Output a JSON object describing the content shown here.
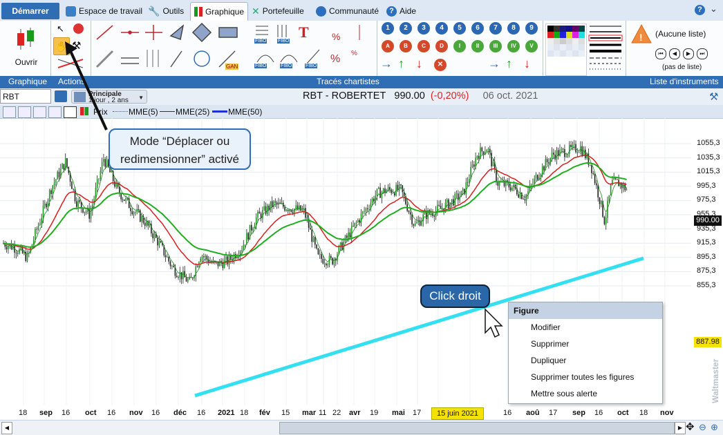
{
  "tabs": {
    "start": "Démarrer",
    "workspace": "Espace de travail",
    "tools": "Outils",
    "chart": "Graphique",
    "portfolio": "Portefeuille",
    "community": "Communauté",
    "help": "Aide"
  },
  "ribbon": {
    "open_label": "Ouvrir",
    "no_list": "(Aucune liste)",
    "no_step": "(pas de liste)",
    "fibo": "FIBO",
    "gann": "GAN"
  },
  "groups": {
    "chart": "Graphique",
    "actions": "Actions",
    "tracings": "Tracés chartistes",
    "instruments": "Liste d'instruments"
  },
  "toolbar": {
    "symbol": "RBT",
    "period_main": "Principale",
    "period_sub": "1 jour , 2 ans",
    "title_name": "RBT - ROBERTET",
    "title_price": "990.00",
    "title_change": "(-0,20%)",
    "title_date": "06 oct. 2021"
  },
  "legend": {
    "price": "Prix",
    "mme5": "MME(5)",
    "mme25": "MME(25)",
    "mme50": "MME(50)"
  },
  "chart_data": {
    "type": "line",
    "y_ticks": [
      "1055,3",
      "1035,3",
      "1015,3",
      "995,3",
      "975,3",
      "955,3",
      "935,3",
      "915,3",
      "895,3",
      "875,3",
      "855,3"
    ],
    "y_tick_values": [
      1055.3,
      1035.3,
      1015.3,
      995.3,
      975.3,
      955.3,
      935.3,
      915.3,
      895.3,
      875.3,
      855.3
    ],
    "x_ticks": [
      "18",
      "sep",
      "16",
      "oct",
      "16",
      "nov",
      "16",
      "déc",
      "16",
      "2021",
      "18",
      "fév",
      "15",
      "mar",
      "11",
      "22",
      "avr",
      "19",
      "mai",
      "17",
      "15",
      "juin 2021",
      "16",
      "aoû",
      "17",
      "sep",
      "16",
      "oct",
      "18",
      "nov"
    ],
    "last_price_label": "990.00",
    "trendline_price_label": "887.98",
    "cursor_date_label": "15 juin 2021",
    "watermark": "Waltmaster"
  },
  "callouts": {
    "move_mode": "Mode “Déplacer ou redimensionner” activé",
    "right_click": "Click droit"
  },
  "context_menu": {
    "header": "Figure",
    "items": [
      "Modifier",
      "Supprimer",
      "Dupliquer",
      "Supprimer toutes les figures",
      "Mettre sous alerte"
    ]
  },
  "colors": {
    "accent": "#2f6db5",
    "mme5": "#1e8a1e",
    "mme25": "#d62020",
    "mme50": "#1fae1f",
    "trendline": "#33e0f2"
  }
}
